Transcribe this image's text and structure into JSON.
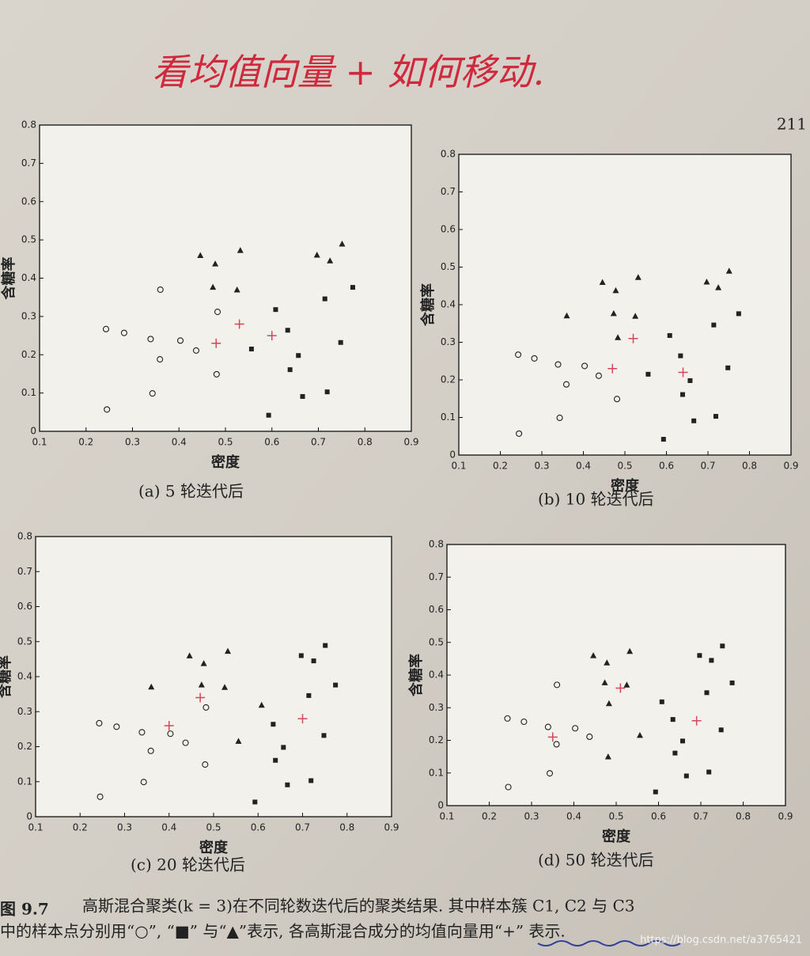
{
  "page_number": "211",
  "handwriting": "看均值向量 + 如何移动.",
  "figure_label": "图 9.7",
  "caption_lines": [
    "高斯混合聚类(k = 3)在不同轮数迭代后的聚类结果. 其中样本簇 C1, C2 与 C3",
    "中的样本点分别用“○”, “■” 与“▲”表示, 各高斯混合成分的均值向量用“+” 表示."
  ],
  "watermark": "https://blog.csdn.net/a3765421",
  "chart_data": [
    {
      "type": "scatter",
      "caption": "(a) 5 轮迭代后",
      "xlabel": "密度",
      "ylabel": "含糖率",
      "xlim": [
        0.1,
        0.9
      ],
      "ylim": [
        0,
        0.8
      ],
      "xticks": [
        0.1,
        0.2,
        0.3,
        0.4,
        0.5,
        0.6,
        0.7,
        0.8,
        0.9
      ],
      "yticks": [
        0,
        0.1,
        0.2,
        0.3,
        0.4,
        0.5,
        0.6,
        0.7,
        0.8
      ],
      "series": [
        {
          "marker": "circle",
          "color": "#222222",
          "x": [
            0.243,
            0.245,
            0.282,
            0.339,
            0.343,
            0.359,
            0.36,
            0.403,
            0.437,
            0.481,
            0.483
          ],
          "values": [
            0.267,
            0.057,
            0.257,
            0.241,
            0.099,
            0.188,
            0.37,
            0.237,
            0.211,
            0.149,
            0.312
          ]
        },
        {
          "marker": "square",
          "color": "#222222",
          "x": [
            0.774,
            0.634,
            0.608,
            0.556,
            0.666,
            0.639,
            0.657,
            0.593,
            0.719,
            0.748,
            0.714
          ],
          "values": [
            0.376,
            0.264,
            0.318,
            0.215,
            0.091,
            0.161,
            0.198,
            0.042,
            0.103,
            0.232,
            0.346
          ]
        },
        {
          "marker": "triangle",
          "color": "#222222",
          "x": [
            0.446,
            0.473,
            0.478,
            0.532,
            0.525,
            0.697,
            0.751,
            0.725
          ],
          "values": [
            0.459,
            0.376,
            0.437,
            0.472,
            0.369,
            0.46,
            0.489,
            0.445
          ]
        },
        {
          "marker": "plus",
          "color": "#d2495a",
          "x": [
            0.48,
            0.53,
            0.6
          ],
          "values": [
            0.23,
            0.28,
            0.25
          ]
        }
      ]
    },
    {
      "type": "scatter",
      "caption": "(b) 10 轮迭代后",
      "xlabel": "密度",
      "ylabel": "含糖率",
      "xlim": [
        0.1,
        0.9
      ],
      "ylim": [
        0,
        0.8
      ],
      "xticks": [
        0.1,
        0.2,
        0.3,
        0.4,
        0.5,
        0.6,
        0.7,
        0.8,
        0.9
      ],
      "yticks": [
        0,
        0.1,
        0.2,
        0.3,
        0.4,
        0.5,
        0.6,
        0.7,
        0.8
      ],
      "series": [
        {
          "marker": "circle",
          "color": "#222222",
          "x": [
            0.243,
            0.245,
            0.282,
            0.339,
            0.343,
            0.359,
            0.403,
            0.437,
            0.481
          ],
          "values": [
            0.267,
            0.057,
            0.257,
            0.241,
            0.099,
            0.188,
            0.237,
            0.211,
            0.149
          ]
        },
        {
          "marker": "square",
          "color": "#222222",
          "x": [
            0.774,
            0.634,
            0.608,
            0.556,
            0.666,
            0.639,
            0.657,
            0.593,
            0.719,
            0.748,
            0.714
          ],
          "values": [
            0.376,
            0.264,
            0.318,
            0.215,
            0.091,
            0.161,
            0.198,
            0.042,
            0.103,
            0.232,
            0.346
          ]
        },
        {
          "marker": "triangle",
          "color": "#222222",
          "x": [
            0.36,
            0.446,
            0.473,
            0.478,
            0.483,
            0.525,
            0.532,
            0.697,
            0.751,
            0.725
          ],
          "values": [
            0.37,
            0.459,
            0.376,
            0.437,
            0.312,
            0.369,
            0.472,
            0.46,
            0.489,
            0.445
          ]
        },
        {
          "marker": "plus",
          "color": "#d2495a",
          "x": [
            0.47,
            0.52,
            0.64
          ],
          "values": [
            0.23,
            0.31,
            0.22
          ]
        }
      ]
    },
    {
      "type": "scatter",
      "caption": "(c) 20 轮迭代后",
      "xlabel": "密度",
      "ylabel": "含糖率",
      "xlim": [
        0.1,
        0.9
      ],
      "ylim": [
        0,
        0.8
      ],
      "xticks": [
        0.1,
        0.2,
        0.3,
        0.4,
        0.5,
        0.6,
        0.7,
        0.8,
        0.9
      ],
      "yticks": [
        0,
        0.1,
        0.2,
        0.3,
        0.4,
        0.5,
        0.6,
        0.7,
        0.8
      ],
      "series": [
        {
          "marker": "circle",
          "color": "#222222",
          "x": [
            0.243,
            0.245,
            0.282,
            0.339,
            0.343,
            0.359,
            0.403,
            0.437,
            0.481,
            0.483
          ],
          "values": [
            0.267,
            0.057,
            0.257,
            0.241,
            0.099,
            0.188,
            0.237,
            0.211,
            0.149,
            0.312
          ]
        },
        {
          "marker": "square",
          "color": "#222222",
          "x": [
            0.697,
            0.774,
            0.634,
            0.666,
            0.639,
            0.657,
            0.593,
            0.719,
            0.748,
            0.714,
            0.751,
            0.725
          ],
          "values": [
            0.46,
            0.376,
            0.264,
            0.091,
            0.161,
            0.198,
            0.042,
            0.103,
            0.232,
            0.346,
            0.489,
            0.445
          ]
        },
        {
          "marker": "triangle",
          "color": "#222222",
          "x": [
            0.36,
            0.446,
            0.473,
            0.478,
            0.525,
            0.532,
            0.556,
            0.608
          ],
          "values": [
            0.37,
            0.459,
            0.376,
            0.437,
            0.369,
            0.472,
            0.215,
            0.318
          ]
        },
        {
          "marker": "plus",
          "color": "#d2495a",
          "x": [
            0.4,
            0.47,
            0.7
          ],
          "values": [
            0.26,
            0.34,
            0.28
          ]
        }
      ]
    },
    {
      "type": "scatter",
      "caption": "(d) 50 轮迭代后",
      "xlabel": "密度",
      "ylabel": "含糖率",
      "xlim": [
        0.1,
        0.9
      ],
      "ylim": [
        0,
        0.8
      ],
      "xticks": [
        0.1,
        0.2,
        0.3,
        0.4,
        0.5,
        0.6,
        0.7,
        0.8,
        0.9
      ],
      "yticks": [
        0,
        0.1,
        0.2,
        0.3,
        0.4,
        0.5,
        0.6,
        0.7,
        0.8
      ],
      "series": [
        {
          "marker": "circle",
          "color": "#222222",
          "x": [
            0.243,
            0.245,
            0.282,
            0.339,
            0.343,
            0.359,
            0.36,
            0.403,
            0.437
          ],
          "values": [
            0.267,
            0.057,
            0.257,
            0.241,
            0.099,
            0.188,
            0.37,
            0.237,
            0.211
          ]
        },
        {
          "marker": "square",
          "color": "#222222",
          "x": [
            0.697,
            0.774,
            0.634,
            0.608,
            0.666,
            0.639,
            0.657,
            0.593,
            0.719,
            0.748,
            0.714,
            0.751,
            0.725
          ],
          "values": [
            0.46,
            0.376,
            0.264,
            0.318,
            0.091,
            0.161,
            0.198,
            0.042,
            0.103,
            0.232,
            0.346,
            0.489,
            0.445
          ]
        },
        {
          "marker": "triangle",
          "color": "#222222",
          "x": [
            0.446,
            0.473,
            0.478,
            0.481,
            0.483,
            0.525,
            0.532,
            0.556
          ],
          "values": [
            0.459,
            0.376,
            0.437,
            0.149,
            0.312,
            0.369,
            0.472,
            0.215
          ]
        },
        {
          "marker": "plus",
          "color": "#d2495a",
          "x": [
            0.35,
            0.51,
            0.69
          ],
          "values": [
            0.21,
            0.36,
            0.26
          ]
        }
      ]
    }
  ]
}
